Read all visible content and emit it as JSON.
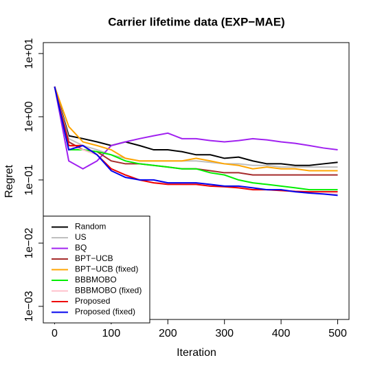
{
  "chart_data": {
    "type": "line",
    "title": "Carrier lifetime data (EXP−MAE)",
    "x_label": "Iteration",
    "y_label": "Regret",
    "log_y": true,
    "grid": false,
    "legend_position": "bottomleft",
    "xlim": [
      -20,
      520
    ],
    "xticks": [
      0,
      100,
      200,
      300,
      400,
      500
    ],
    "ylim": [
      0.00062,
      14.9
    ],
    "yticks": [
      {
        "value": 0.001,
        "label": "1e−03"
      },
      {
        "value": 0.01,
        "label": "1e−02"
      },
      {
        "value": 0.1,
        "label": "1e−01"
      },
      {
        "value": 1,
        "label": "1e+00"
      },
      {
        "value": 10,
        "label": "1e+01"
      }
    ],
    "x": [
      0,
      25,
      50,
      75,
      100,
      125,
      150,
      175,
      200,
      225,
      250,
      275,
      300,
      325,
      350,
      375,
      400,
      425,
      450,
      475,
      500
    ],
    "series": [
      {
        "name": "Random",
        "color": "#000000",
        "values": [
          3,
          0.5,
          0.45,
          0.4,
          0.35,
          0.4,
          0.35,
          0.3,
          0.3,
          0.28,
          0.25,
          0.25,
          0.22,
          0.23,
          0.2,
          0.18,
          0.18,
          0.17,
          0.17,
          0.18,
          0.19
        ]
      },
      {
        "name": "US",
        "color": "#bebebe",
        "values": [
          3,
          0.45,
          0.35,
          0.3,
          0.25,
          0.22,
          0.2,
          0.2,
          0.2,
          0.2,
          0.2,
          0.19,
          0.18,
          0.18,
          0.17,
          0.17,
          0.16,
          0.16,
          0.16,
          0.16,
          0.16
        ]
      },
      {
        "name": "BQ",
        "color": "#a020f0",
        "values": [
          3,
          0.2,
          0.15,
          0.2,
          0.35,
          0.4,
          0.45,
          0.5,
          0.55,
          0.45,
          0.45,
          0.42,
          0.4,
          0.42,
          0.45,
          0.43,
          0.4,
          0.38,
          0.35,
          0.32,
          0.3
        ]
      },
      {
        "name": "BPT−UCB",
        "color": "#a52a2a",
        "values": [
          3,
          0.4,
          0.3,
          0.28,
          0.2,
          0.18,
          0.18,
          0.17,
          0.16,
          0.15,
          0.15,
          0.14,
          0.13,
          0.13,
          0.12,
          0.12,
          0.12,
          0.12,
          0.12,
          0.12,
          0.12
        ]
      },
      {
        "name": "BPT−UCB (fixed)",
        "color": "#ffa500",
        "values": [
          3,
          0.7,
          0.4,
          0.35,
          0.3,
          0.22,
          0.2,
          0.2,
          0.2,
          0.2,
          0.22,
          0.2,
          0.18,
          0.17,
          0.15,
          0.16,
          0.15,
          0.15,
          0.14,
          0.14,
          0.14
        ]
      },
      {
        "name": "BBBMOBO",
        "color": "#00ee00",
        "values": [
          3,
          0.3,
          0.3,
          0.28,
          0.25,
          0.2,
          0.18,
          0.17,
          0.16,
          0.15,
          0.15,
          0.13,
          0.12,
          0.1,
          0.09,
          0.085,
          0.08,
          0.075,
          0.07,
          0.07,
          0.07
        ]
      },
      {
        "name": "BBBMOBO (fixed)",
        "color": "#ffc0cb",
        "values": [
          3,
          0.35,
          0.3,
          0.25,
          0.15,
          0.12,
          0.1,
          0.09,
          0.09,
          0.085,
          0.085,
          0.08,
          0.08,
          0.075,
          0.07,
          0.07,
          0.068,
          0.065,
          0.062,
          0.06,
          0.06
        ]
      },
      {
        "name": "Proposed",
        "color": "#ee0000",
        "values": [
          3,
          0.35,
          0.35,
          0.25,
          0.15,
          0.12,
          0.1,
          0.09,
          0.085,
          0.085,
          0.085,
          0.08,
          0.078,
          0.075,
          0.07,
          0.07,
          0.068,
          0.066,
          0.065,
          0.065,
          0.065
        ]
      },
      {
        "name": "Proposed (fixed)",
        "color": "#0000ee",
        "values": [
          3,
          0.3,
          0.35,
          0.25,
          0.14,
          0.11,
          0.1,
          0.1,
          0.09,
          0.09,
          0.09,
          0.085,
          0.08,
          0.08,
          0.075,
          0.07,
          0.07,
          0.065,
          0.062,
          0.06,
          0.057
        ]
      }
    ]
  }
}
